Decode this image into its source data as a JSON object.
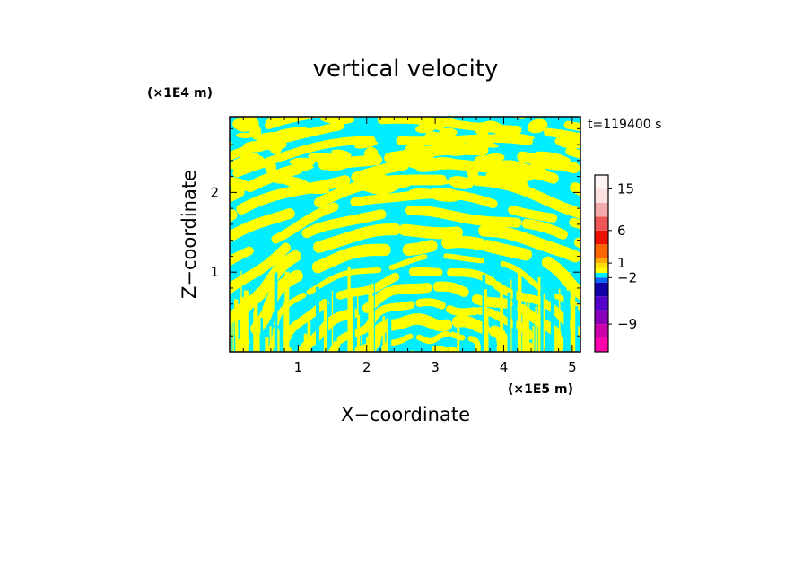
{
  "chart_data": {
    "type": "heatmap",
    "title": "vertical velocity",
    "xlabel": "X−coordinate",
    "ylabel": "Z−coordinate",
    "x_unit": "(×1E5 m)",
    "y_unit": "(×1E4 m)",
    "time_label": "t=119400 s",
    "xlim": [
      0,
      5.12
    ],
    "ylim": [
      0,
      2.95
    ],
    "x_ticks": [
      "1",
      "2",
      "3",
      "4",
      "5"
    ],
    "x_tick_values": [
      1,
      2,
      3,
      4,
      5
    ],
    "y_ticks": [
      "1",
      "2"
    ],
    "y_tick_values": [
      1,
      2
    ],
    "field": {
      "description_values": "sign of vertical velocity: positive = yellow, negative = cyan",
      "positive_color": "#ffff00",
      "negative_color": "#00eeff"
    },
    "colorbar": {
      "tick_labels": [
        "15",
        "6",
        "1",
        "−2",
        "−9"
      ],
      "levels": [
        {
          "value": -12,
          "color": "#ff00aa"
        },
        {
          "value": -9,
          "color": "#cc00aa"
        },
        {
          "value": -6,
          "color": "#8800bb"
        },
        {
          "value": -4,
          "color": "#5500cc"
        },
        {
          "value": -3,
          "color": "#1100aa"
        },
        {
          "value": -2,
          "color": "#0066ff"
        },
        {
          "value": -1,
          "color": "#00eeff"
        },
        {
          "value": 0,
          "color": "#ffff00"
        },
        {
          "value": 1,
          "color": "#ffdd00"
        },
        {
          "value": 2,
          "color": "#ffaa00"
        },
        {
          "value": 4,
          "color": "#ff6600"
        },
        {
          "value": 6,
          "color": "#ee1100"
        },
        {
          "value": 9,
          "color": "#ee5555"
        },
        {
          "value": 12,
          "color": "#f4aaaa"
        },
        {
          "value": 15,
          "color": "#fde0e0"
        },
        {
          "value": 20,
          "color": "#fff4f4"
        }
      ],
      "tick_values": [
        15,
        6,
        1,
        -2,
        -9
      ]
    }
  }
}
